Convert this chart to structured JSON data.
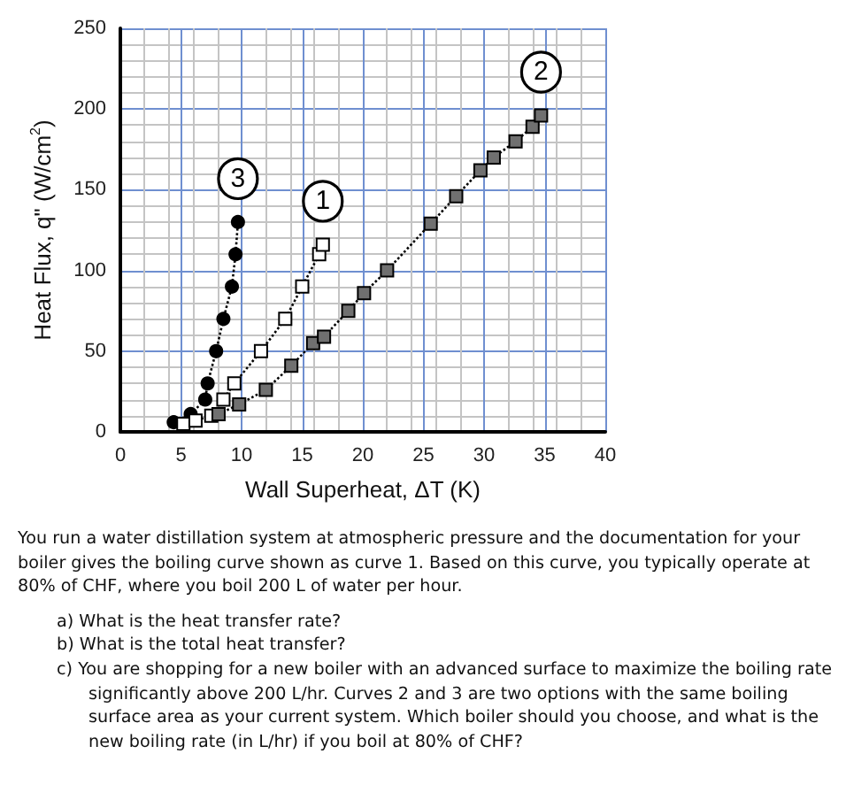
{
  "chart_data": {
    "type": "line",
    "xlabel": "Wall Superheat, ΔT (K)",
    "ylabel": "Heat Flux, q\" (W/cm$^{2}$)",
    "xlim": [
      0,
      40
    ],
    "xticks": [
      0,
      5,
      10,
      15,
      20,
      25,
      30,
      35,
      40
    ],
    "ylim": [
      0,
      250
    ],
    "yticks": [
      0,
      50,
      100,
      150,
      200,
      250
    ],
    "grid": true,
    "line_style": "dotted",
    "series": [
      {
        "name": "3",
        "color": "#000000",
        "marker": "circle",
        "x": [
          4.4,
          5.8,
          7.0,
          7.2,
          7.9,
          8.5,
          9.2,
          9.5,
          9.7
        ],
        "values": [
          6,
          11,
          20,
          30,
          50,
          70,
          90,
          110,
          130
        ]
      },
      {
        "name": "1",
        "color": "#ffffff",
        "marker": "square",
        "x": [
          5.2,
          6.2,
          7.5,
          8.5,
          9.4,
          11.6,
          13.6,
          15.0,
          16.4,
          16.7
        ],
        "values": [
          5,
          7,
          10,
          20,
          30,
          50,
          70,
          90,
          110,
          116
        ]
      },
      {
        "name": "2",
        "color": "#707070",
        "marker": "square",
        "x": [
          8.1,
          9.8,
          12.0,
          14.1,
          15.9,
          16.8,
          18.8,
          20.1,
          22.0,
          25.6,
          27.7,
          29.7,
          30.8,
          32.6,
          34.0,
          34.7
        ],
        "values": [
          11,
          17,
          26,
          41,
          55,
          59,
          75,
          86,
          100,
          129,
          146,
          162,
          170,
          180,
          189,
          196
        ]
      }
    ],
    "annotations": [
      "You run a water distillation system at atmospheric pressure and the documentation for your boiler gives the boiling curve shown as curve 1. Based on this curve, you typically operate at 80% of CHF, where you boil 200 L of water per hour.",
      "a)  What is the heat transfer rate?",
      "b)  What is the total heat transfer?",
      "c)  You are shopping for a new boiler with an advanced surface to maximize the boiling rate significantly above 200 L/hr. Curves 2 and 3 are two options with the same boiling surface area as your current system. Which boiler should you choose, and what is the new boiling rate (in L/hr) if you boil at 80% of CHF?"
    ]
  }
}
